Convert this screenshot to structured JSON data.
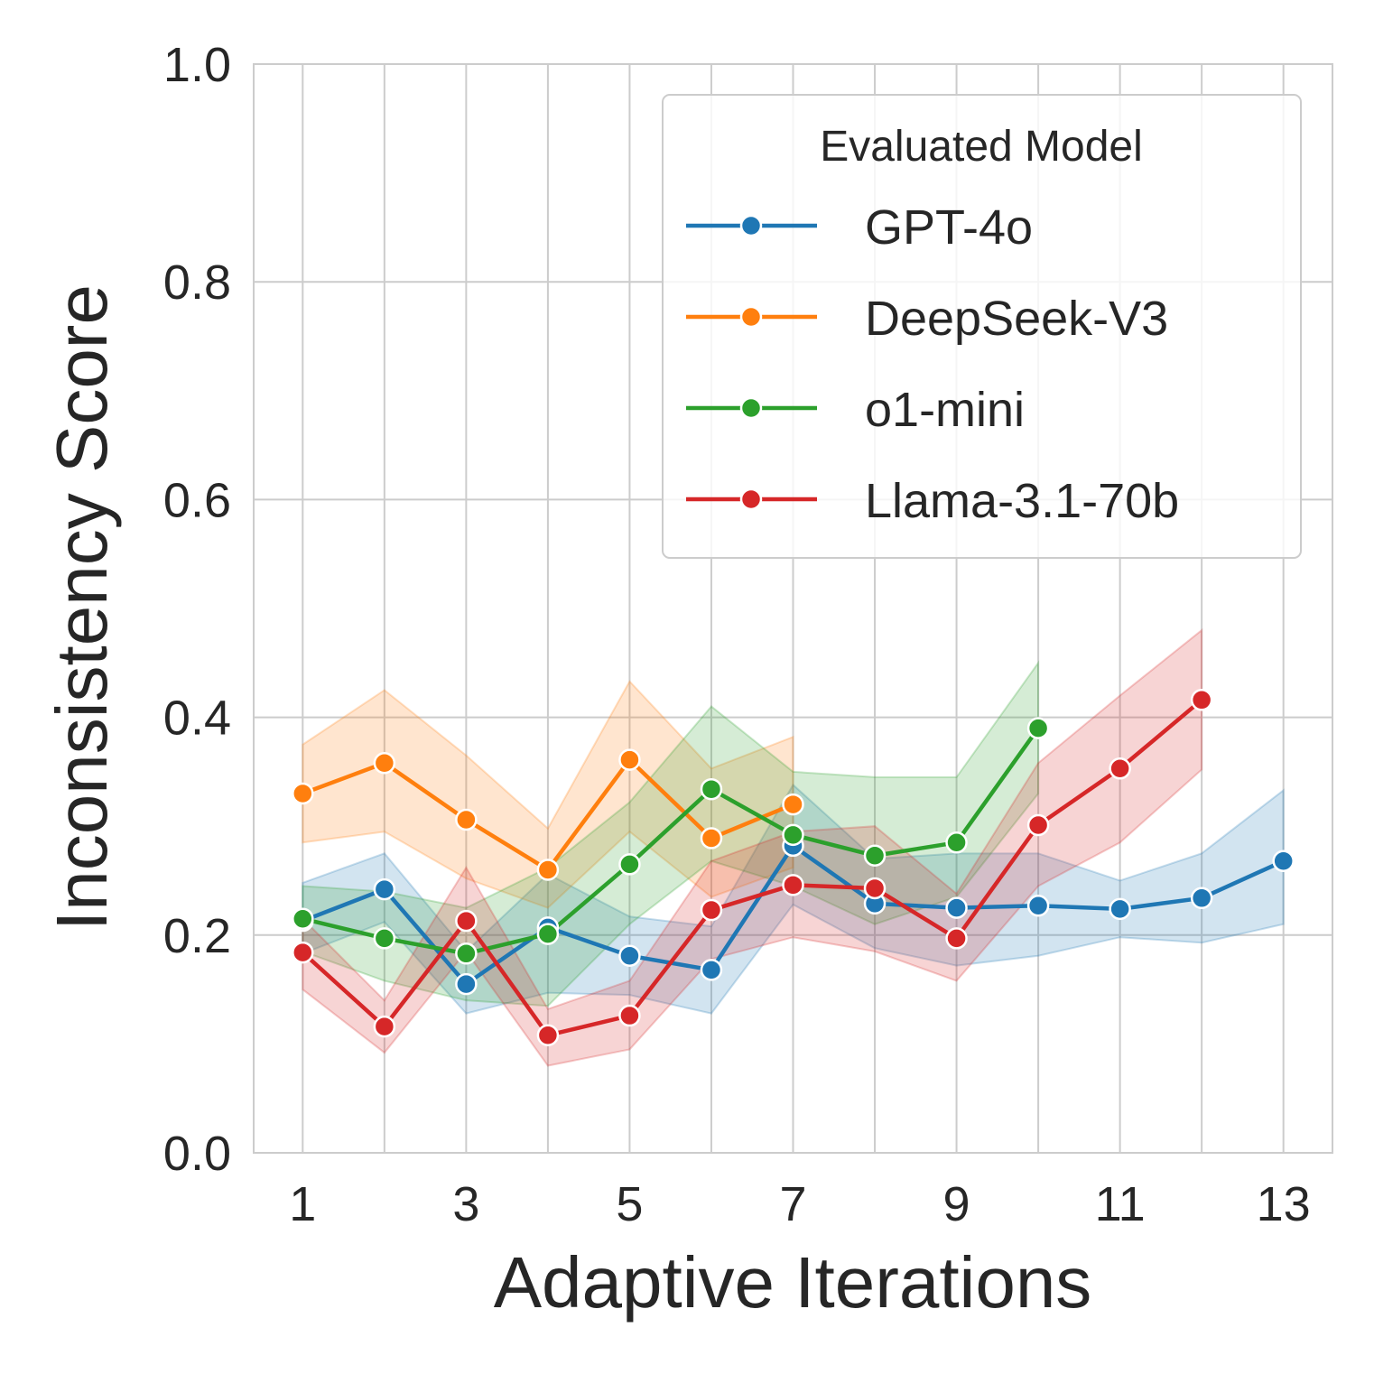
{
  "chart_data": {
    "type": "line",
    "xlabel": "Adaptive Iterations",
    "ylabel": "Inconsistency Score",
    "xlim": [
      0.4,
      13.6
    ],
    "ylim": [
      0,
      1
    ],
    "xticks": [
      1,
      3,
      5,
      7,
      9,
      11,
      13
    ],
    "yticks": [
      0.0,
      0.2,
      0.4,
      0.6,
      0.8,
      1.0
    ],
    "ytick_labels": [
      "0.0",
      "0.2",
      "0.4",
      "0.6",
      "0.8",
      "1.0"
    ],
    "grid": true,
    "legend": {
      "title": "Evaluated Model",
      "placement": "top-right"
    },
    "series": [
      {
        "name": "GPT-4o",
        "color": "#1f77b4",
        "x": [
          1,
          2,
          3,
          4,
          5,
          6,
          7,
          8,
          9,
          10,
          11,
          12,
          13
        ],
        "y": [
          0.213,
          0.242,
          0.155,
          0.207,
          0.181,
          0.168,
          0.282,
          0.229,
          0.225,
          0.227,
          0.224,
          0.234,
          0.268
        ],
        "lower": [
          0.183,
          0.212,
          0.128,
          0.147,
          0.145,
          0.128,
          0.228,
          0.188,
          0.172,
          0.181,
          0.198,
          0.193,
          0.21
        ],
        "upper": [
          0.248,
          0.275,
          0.185,
          0.256,
          0.217,
          0.208,
          0.338,
          0.27,
          0.275,
          0.275,
          0.25,
          0.275,
          0.333
        ]
      },
      {
        "name": "DeepSeek-V3",
        "color": "#ff7f0e",
        "x": [
          1,
          2,
          3,
          4,
          5,
          6,
          7
        ],
        "y": [
          0.33,
          0.358,
          0.306,
          0.26,
          0.361,
          0.289,
          0.32
        ],
        "lower": [
          0.285,
          0.295,
          0.252,
          0.225,
          0.295,
          0.235,
          0.262
        ],
        "upper": [
          0.375,
          0.425,
          0.365,
          0.298,
          0.433,
          0.353,
          0.382
        ]
      },
      {
        "name": "o1-mini",
        "color": "#2ca02c",
        "x": [
          1,
          2,
          3,
          4,
          5,
          6,
          7,
          8,
          9,
          10
        ],
        "y": [
          0.215,
          0.197,
          0.183,
          0.201,
          0.265,
          0.334,
          0.292,
          0.273,
          0.285,
          0.39
        ],
        "lower": [
          0.185,
          0.158,
          0.14,
          0.135,
          0.21,
          0.268,
          0.245,
          0.21,
          0.235,
          0.33
        ],
        "upper": [
          0.245,
          0.24,
          0.225,
          0.262,
          0.322,
          0.41,
          0.35,
          0.345,
          0.345,
          0.45
        ]
      },
      {
        "name": "Llama-3.1-70b",
        "color": "#d62728",
        "x": [
          1,
          2,
          3,
          4,
          5,
          6,
          7,
          8,
          9,
          10,
          11,
          12
        ],
        "y": [
          0.184,
          0.116,
          0.213,
          0.108,
          0.126,
          0.223,
          0.246,
          0.243,
          0.197,
          0.301,
          0.353,
          0.416
        ],
        "lower": [
          0.15,
          0.092,
          0.185,
          0.08,
          0.095,
          0.178,
          0.198,
          0.185,
          0.158,
          0.245,
          0.285,
          0.352
        ],
        "upper": [
          0.215,
          0.14,
          0.262,
          0.132,
          0.158,
          0.268,
          0.295,
          0.3,
          0.238,
          0.358,
          0.42,
          0.48
        ]
      }
    ]
  }
}
